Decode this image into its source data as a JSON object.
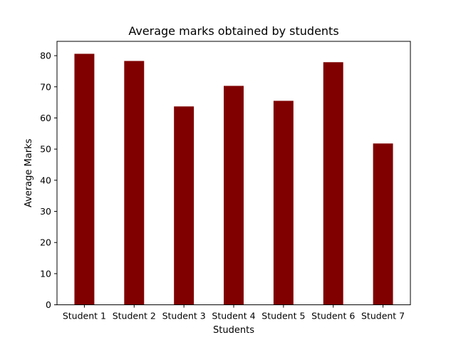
{
  "chart_data": {
    "type": "bar",
    "title": "Average marks obtained by students",
    "xlabel": "Students",
    "ylabel": "Average Marks",
    "categories": [
      "Student 1",
      "Student 2",
      "Student 3",
      "Student 4",
      "Student 5",
      "Student 6",
      "Student 7"
    ],
    "values": [
      80.6,
      78.3,
      63.7,
      70.3,
      65.5,
      77.9,
      51.8
    ],
    "ylim": [
      0,
      84.6
    ],
    "yticks": [
      0,
      10,
      20,
      30,
      40,
      50,
      60,
      70,
      80
    ],
    "bar_color": "#800000",
    "grid": false,
    "legend": "none"
  }
}
